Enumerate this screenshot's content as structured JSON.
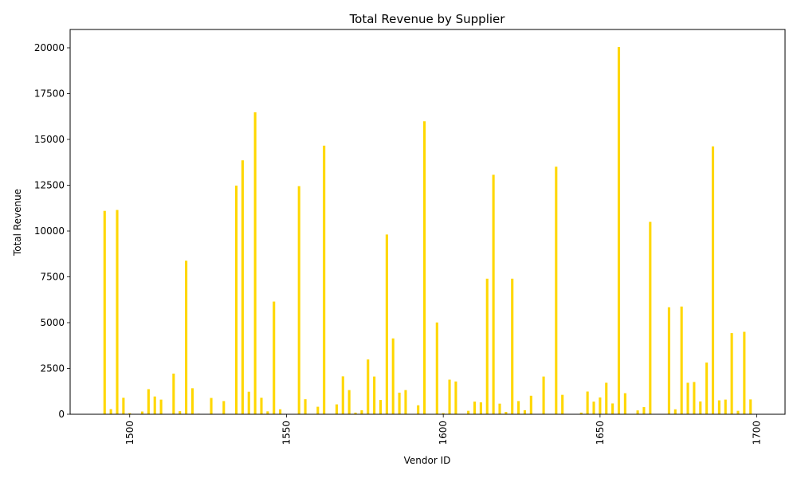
{
  "chart_data": {
    "type": "bar",
    "title": "Total Revenue by Supplier",
    "xlabel": "Vendor ID",
    "ylabel": "Total Revenue",
    "xlim": [
      1481,
      1709
    ],
    "ylim": [
      0,
      21000
    ],
    "xticks": [
      1500,
      1550,
      1600,
      1650,
      1700
    ],
    "yticks": [
      0,
      2500,
      5000,
      7500,
      10000,
      12500,
      15000,
      17500,
      20000
    ],
    "grid": false,
    "legend": "none",
    "bar_color": "#FFD700",
    "x": [
      1492,
      1494,
      1496,
      1498,
      1500,
      1504,
      1506,
      1508,
      1510,
      1514,
      1516,
      1518,
      1520,
      1522,
      1526,
      1530,
      1534,
      1536,
      1538,
      1540,
      1542,
      1544,
      1546,
      1548,
      1554,
      1556,
      1560,
      1562,
      1566,
      1568,
      1570,
      1572,
      1574,
      1576,
      1578,
      1580,
      1582,
      1584,
      1586,
      1588,
      1592,
      1594,
      1598,
      1600,
      1602,
      1604,
      1608,
      1610,
      1612,
      1614,
      1616,
      1618,
      1620,
      1622,
      1624,
      1626,
      1628,
      1632,
      1636,
      1638,
      1644,
      1646,
      1648,
      1650,
      1652,
      1654,
      1656,
      1658,
      1662,
      1664,
      1666,
      1672,
      1674,
      1676,
      1678,
      1680,
      1682,
      1684,
      1686,
      1688,
      1690,
      1692,
      1694,
      1696,
      1698
    ],
    "values": [
      11100,
      280,
      11150,
      900,
      60,
      150,
      1370,
      970,
      800,
      2220,
      170,
      8380,
      1420,
      30,
      890,
      720,
      12480,
      13860,
      1230,
      16480,
      900,
      160,
      6150,
      270,
      12450,
      820,
      410,
      14660,
      540,
      2070,
      1320,
      90,
      220,
      2990,
      2060,
      780,
      9810,
      4140,
      1180,
      1320,
      490,
      15990,
      5010,
      60,
      1890,
      1790,
      190,
      690,
      650,
      7400,
      13070,
      580,
      130,
      7400,
      720,
      220,
      1010,
      2060,
      13510,
      1060,
      90,
      1240,
      690,
      920,
      1720,
      590,
      20040,
      1150,
      210,
      390,
      10500,
      5840,
      270,
      5880,
      1720,
      1760,
      700,
      2820,
      14620,
      760,
      800,
      4430,
      190,
      4500,
      810
    ]
  }
}
